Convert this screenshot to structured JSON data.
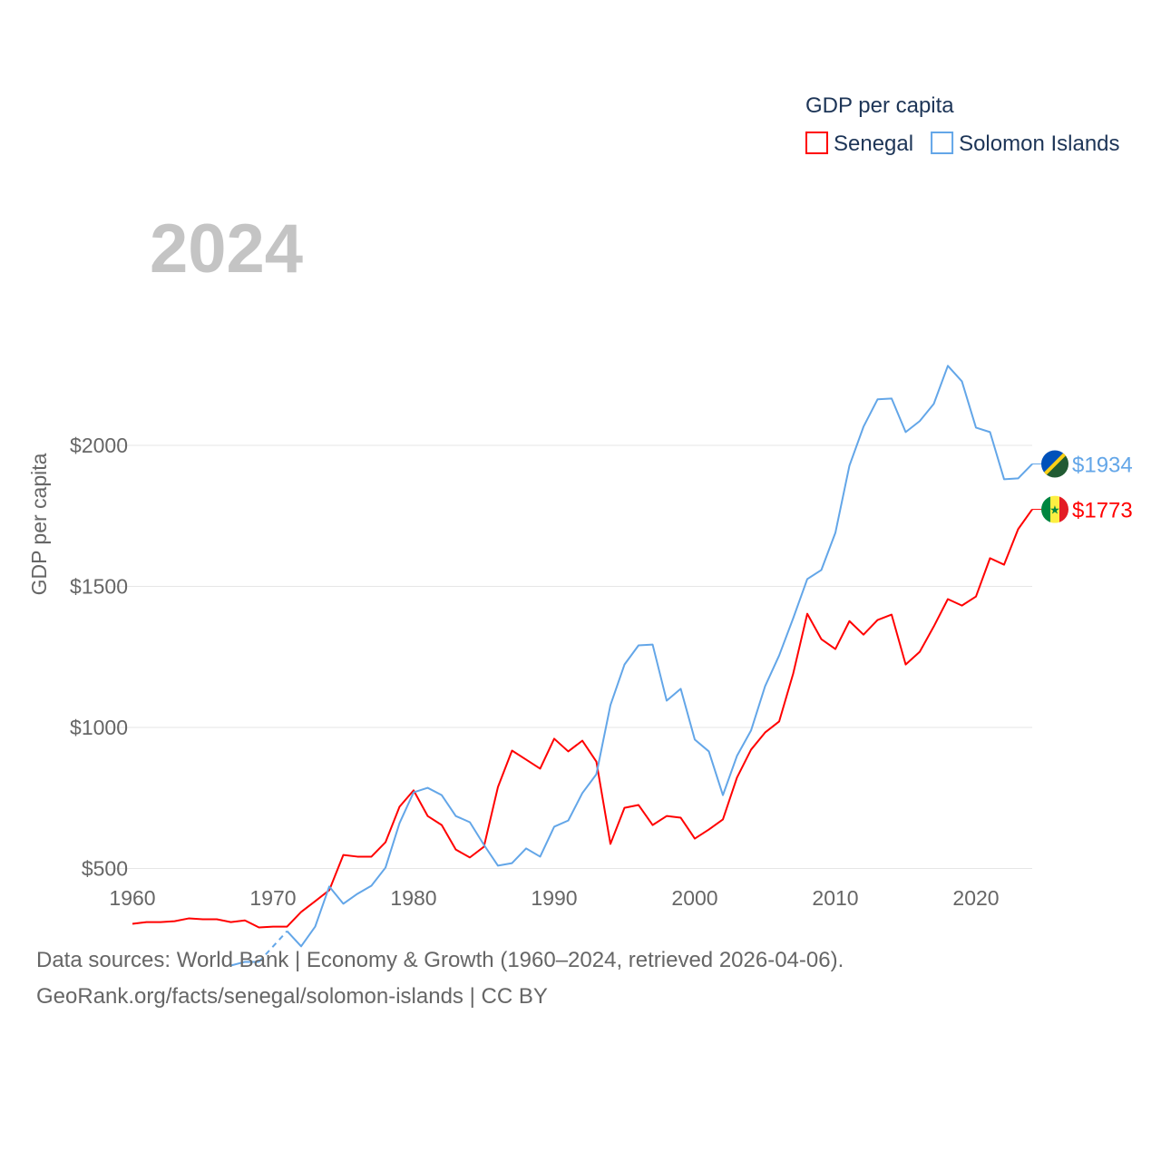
{
  "chart_data": {
    "type": "line",
    "big_year": "2024",
    "ylabel": "GDP per capita",
    "legend_title": "GDP per capita",
    "legend_placement": "top-right",
    "xlim": [
      1960,
      2024
    ],
    "ylim": [
      0,
      2300
    ],
    "x_ticks": [
      1960,
      1970,
      1980,
      1990,
      2000,
      2010,
      2020
    ],
    "y_ticks": [
      {
        "v": 500,
        "label": "$500"
      },
      {
        "v": 1000,
        "label": "$1000"
      },
      {
        "v": 1500,
        "label": "$1500"
      },
      {
        "v": 2000,
        "label": "$2000"
      }
    ],
    "series": [
      {
        "name": "Senegal",
        "color": "#ff0000",
        "end_label": "$1773",
        "flag": "senegal-flag",
        "start": 1960,
        "values": [
          304,
          310,
          310,
          313,
          323,
          320,
          320,
          310,
          316,
          291,
          294,
          294,
          346,
          384,
          423,
          548,
          542,
          542,
          593,
          719,
          777,
          686,
          654,
          567,
          539,
          577,
          789,
          918,
          886,
          854,
          960,
          915,
          953,
          879,
          587,
          715,
          725,
          654,
          686,
          680,
          606,
          638,
          674,
          822,
          921,
          982,
          1021,
          1191,
          1403,
          1313,
          1278,
          1377,
          1329,
          1381,
          1400,
          1223,
          1268,
          1358,
          1455,
          1432,
          1464,
          1600,
          1577,
          1703,
          1773
        ]
      },
      {
        "name": "Solomon Islands",
        "color": "#63a6e8",
        "end_label": "$1934",
        "flag": "solomon-islands-flag",
        "start": 1967,
        "values": [
          156,
          169,
          169,
          null,
          278,
          224,
          294,
          436,
          375,
          410,
          439,
          503,
          661,
          770,
          786,
          760,
          686,
          664,
          584,
          510,
          519,
          571,
          542,
          648,
          670,
          767,
          834,
          1079,
          1223,
          1291,
          1294,
          1095,
          1137,
          957,
          915,
          760,
          899,
          989,
          1146,
          1255,
          1387,
          1526,
          1558,
          1690,
          1928,
          2066,
          2163,
          2166,
          2047,
          2086,
          2147,
          2282,
          2227,
          2063,
          2047,
          1880,
          1883,
          1934
        ]
      }
    ]
  },
  "footer": {
    "line1": "Data sources: World Bank | Economy & Growth (1960–2024, retrieved 2026-04-06).",
    "line2": "GeoRank.org/facts/senegal/solomon-islands | CC BY"
  }
}
